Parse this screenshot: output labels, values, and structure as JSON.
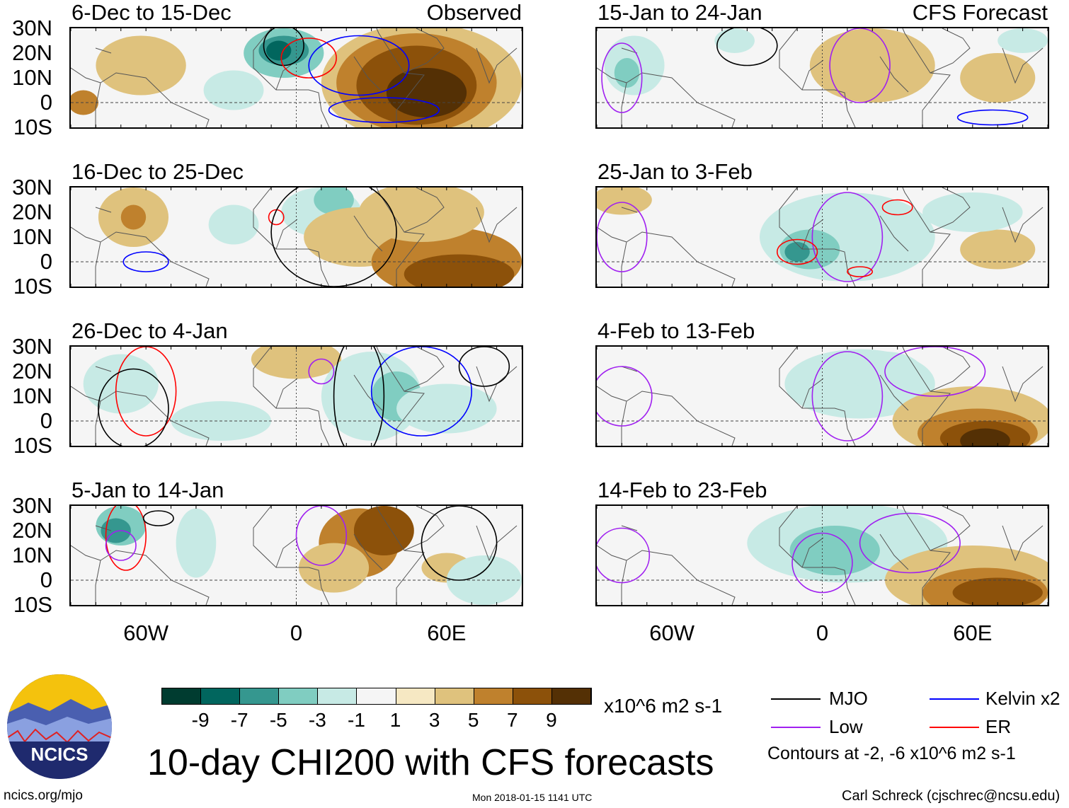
{
  "figure": {
    "title": "10-day CHI200 with CFS forecasts",
    "timestamp": "Mon 2018-01-15 1141 UTC",
    "url": "ncics.org/mjo",
    "author": "Carl Schreck (cjschrec@ncsu.edu)",
    "logo_text": "NCICS",
    "left_header": "Observed",
    "right_header": "CFS Forecast"
  },
  "axes": {
    "lat_labels": [
      "30N",
      "20N",
      "10N",
      "0",
      "10S"
    ],
    "lon_labels": [
      "60W",
      "0",
      "60E"
    ],
    "lon_range": [
      -90,
      90
    ],
    "lat_range": [
      -10,
      30
    ]
  },
  "colorbar": {
    "labels": [
      "-9",
      "-7",
      "-5",
      "-3",
      "-1",
      "1",
      "3",
      "5",
      "7",
      "9"
    ],
    "colors": [
      "#003c30",
      "#01665e",
      "#35978f",
      "#80cdc1",
      "#c7eae5",
      "#f5f5f5",
      "#f6e8c3",
      "#dfc27d",
      "#bf812d",
      "#8c510a",
      "#543005"
    ],
    "units": "x10^6 m2 s-1"
  },
  "legend": {
    "items": [
      {
        "label": "MJO",
        "color": "#000000"
      },
      {
        "label": "Kelvin x2",
        "color": "#0000ff"
      },
      {
        "label": "Low",
        "color": "#a020f0"
      },
      {
        "label": "ER",
        "color": "#ff0000"
      }
    ],
    "note": "Contours at -2, -6 x10^6 m2 s-1"
  },
  "chart_data": {
    "type": "map",
    "variable": "CHI200 anomaly",
    "panels": [
      {
        "title": "6-Dec to 15-Dec",
        "group": "Observed",
        "fills": [
          [
            -62,
            15,
            18,
            12,
            3
          ],
          [
            -85,
            0,
            6,
            5,
            5
          ],
          [
            -25,
            5,
            12,
            8,
            -3
          ],
          [
            -5,
            20,
            16,
            10,
            -5
          ],
          [
            -5,
            21,
            10,
            6,
            -7
          ],
          [
            -7,
            21,
            5,
            4,
            -9
          ],
          [
            50,
            8,
            40,
            24,
            3
          ],
          [
            48,
            8,
            32,
            20,
            5
          ],
          [
            48,
            7,
            24,
            16,
            7
          ],
          [
            52,
            4,
            16,
            10,
            9
          ]
        ],
        "contours": [
          [
            "MJO",
            -5,
            23,
            8,
            8
          ],
          [
            "ER",
            5,
            18,
            11,
            8
          ],
          [
            "Kelvin",
            35,
            -3,
            22,
            5
          ],
          [
            "Kelvin",
            25,
            15,
            20,
            12
          ]
        ]
      },
      {
        "title": "16-Dec to 25-Dec",
        "group": "Observed",
        "fills": [
          [
            -65,
            18,
            14,
            12,
            3
          ],
          [
            -65,
            18,
            5,
            5,
            5
          ],
          [
            10,
            20,
            16,
            10,
            -3
          ],
          [
            15,
            25,
            8,
            6,
            -5
          ],
          [
            -25,
            15,
            10,
            8,
            -3
          ],
          [
            25,
            10,
            22,
            12,
            3
          ],
          [
            60,
            0,
            30,
            14,
            5
          ],
          [
            65,
            -5,
            22,
            8,
            7
          ],
          [
            50,
            20,
            25,
            12,
            3
          ]
        ],
        "contours": [
          [
            "Kelvin",
            -60,
            0,
            9,
            4
          ],
          [
            "ER",
            -8,
            18,
            3,
            3
          ],
          [
            "MJO",
            15,
            12,
            25,
            22
          ]
        ]
      },
      {
        "title": "26-Dec to 4-Jan",
        "group": "Observed",
        "fills": [
          [
            -70,
            15,
            15,
            12,
            -3
          ],
          [
            0,
            25,
            18,
            8,
            3
          ],
          [
            30,
            10,
            20,
            18,
            -3
          ],
          [
            40,
            10,
            10,
            10,
            -5
          ],
          [
            60,
            5,
            20,
            10,
            -3
          ],
          [
            -30,
            0,
            20,
            8,
            -3
          ]
        ],
        "contours": [
          [
            "ER",
            -60,
            12,
            12,
            18
          ],
          [
            "MJO",
            -65,
            5,
            14,
            16
          ],
          [
            "Low",
            10,
            20,
            5,
            5
          ],
          [
            "Kelvin",
            50,
            12,
            20,
            18
          ],
          [
            "MJO",
            75,
            22,
            10,
            8
          ],
          [
            "MJO",
            25,
            10,
            10,
            25
          ]
        ]
      },
      {
        "title": "5-Jan to 14-Jan",
        "group": "Observed",
        "fills": [
          [
            -70,
            22,
            10,
            8,
            -5
          ],
          [
            -72,
            20,
            6,
            5,
            -7
          ],
          [
            -40,
            15,
            8,
            14,
            -3
          ],
          [
            25,
            15,
            16,
            14,
            5
          ],
          [
            35,
            20,
            12,
            10,
            7
          ],
          [
            15,
            5,
            14,
            10,
            3
          ],
          [
            60,
            5,
            10,
            6,
            3
          ],
          [
            75,
            0,
            15,
            10,
            -3
          ]
        ],
        "contours": [
          [
            "ER",
            -68,
            18,
            8,
            14
          ],
          [
            "Low",
            -70,
            14,
            6,
            6
          ],
          [
            "Low",
            10,
            18,
            10,
            12
          ],
          [
            "MJO",
            -55,
            25,
            6,
            3
          ],
          [
            "MJO",
            65,
            15,
            15,
            15
          ]
        ]
      },
      {
        "title": "15-Jan to 24-Jan",
        "group": "CFS Forecast",
        "fills": [
          [
            -75,
            15,
            12,
            12,
            -3
          ],
          [
            -78,
            12,
            5,
            6,
            -5
          ],
          [
            -35,
            25,
            8,
            5,
            -3
          ],
          [
            20,
            15,
            25,
            15,
            3
          ],
          [
            70,
            10,
            15,
            10,
            3
          ],
          [
            80,
            25,
            10,
            5,
            -3
          ]
        ],
        "contours": [
          [
            "MJO",
            -30,
            23,
            12,
            8
          ],
          [
            "Low",
            -80,
            10,
            8,
            14
          ],
          [
            "Low",
            15,
            15,
            12,
            15
          ],
          [
            "Kelvin",
            68,
            -6,
            14,
            3
          ]
        ]
      },
      {
        "title": "25-Jan to 3-Feb",
        "group": "CFS Forecast",
        "fills": [
          [
            -80,
            25,
            12,
            6,
            3
          ],
          [
            10,
            10,
            35,
            18,
            -3
          ],
          [
            -5,
            5,
            12,
            8,
            -5
          ],
          [
            -10,
            4,
            5,
            4,
            -7
          ],
          [
            70,
            5,
            15,
            8,
            3
          ],
          [
            60,
            20,
            20,
            8,
            -3
          ]
        ],
        "contours": [
          [
            "Low",
            -80,
            10,
            10,
            14
          ],
          [
            "Low",
            10,
            10,
            14,
            18
          ],
          [
            "ER",
            -10,
            4,
            8,
            5
          ],
          [
            "ER",
            30,
            22,
            6,
            3
          ],
          [
            "ER",
            15,
            -4,
            5,
            2
          ]
        ]
      },
      {
        "title": "4-Feb to 13-Feb",
        "group": "CFS Forecast",
        "fills": [
          [
            15,
            15,
            30,
            14,
            -3
          ],
          [
            25,
            20,
            15,
            8,
            -3
          ],
          [
            60,
            0,
            32,
            14,
            3
          ],
          [
            62,
            -5,
            24,
            10,
            5
          ],
          [
            65,
            -7,
            18,
            7,
            7
          ],
          [
            65,
            -8,
            10,
            5,
            9
          ]
        ],
        "contours": [
          [
            "Low",
            -80,
            10,
            12,
            12
          ],
          [
            "Low",
            10,
            10,
            14,
            18
          ],
          [
            "Low",
            45,
            20,
            20,
            10
          ]
        ]
      },
      {
        "title": "14-Feb to 23-Feb",
        "group": "CFS Forecast",
        "fills": [
          [
            10,
            15,
            40,
            16,
            -3
          ],
          [
            5,
            12,
            18,
            10,
            -5
          ],
          [
            60,
            0,
            35,
            14,
            3
          ],
          [
            65,
            -5,
            25,
            10,
            5
          ],
          [
            70,
            -5,
            18,
            6,
            7
          ]
        ],
        "contours": [
          [
            "Low",
            -80,
            10,
            11,
            11
          ],
          [
            "Low",
            0,
            7,
            12,
            12
          ],
          [
            "Low",
            35,
            15,
            20,
            12
          ]
        ]
      }
    ],
    "fill_format": "[lon, lat, lon_radius_deg, lat_radius_deg, anomaly_level]",
    "contour_format": "[type, lon, lat, lon_radius_deg, lat_radius_deg]"
  }
}
